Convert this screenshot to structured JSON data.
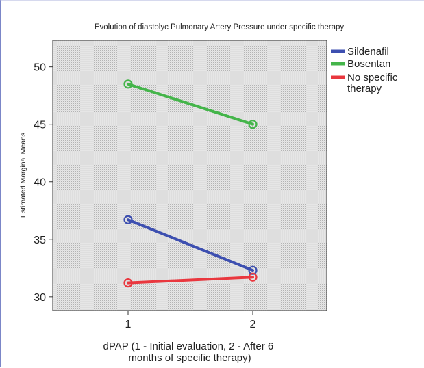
{
  "chart_data": {
    "type": "line",
    "title": "Evolution of diastolyc Pulmonary Artery Pressure under specific therapy",
    "xlabel": "dPAP (1 - Initial evaluation, 2 - After 6 months of specific therapy)",
    "ylabel": "Estimated Marginal Means",
    "categories": [
      "1",
      "2"
    ],
    "ylim": [
      28.8,
      52.3
    ],
    "yticks": [
      30,
      35,
      40,
      45,
      50
    ],
    "grid": false,
    "legend_position": "right",
    "series": [
      {
        "name": "Sildenafil",
        "color": "#3d4fb0",
        "values": [
          36.7,
          32.3
        ]
      },
      {
        "name": "Bosentan",
        "color": "#44b54a",
        "values": [
          48.5,
          45.0
        ]
      },
      {
        "name": "No specific therapy",
        "color": "#e9373e",
        "values": [
          31.2,
          31.7
        ]
      }
    ]
  }
}
